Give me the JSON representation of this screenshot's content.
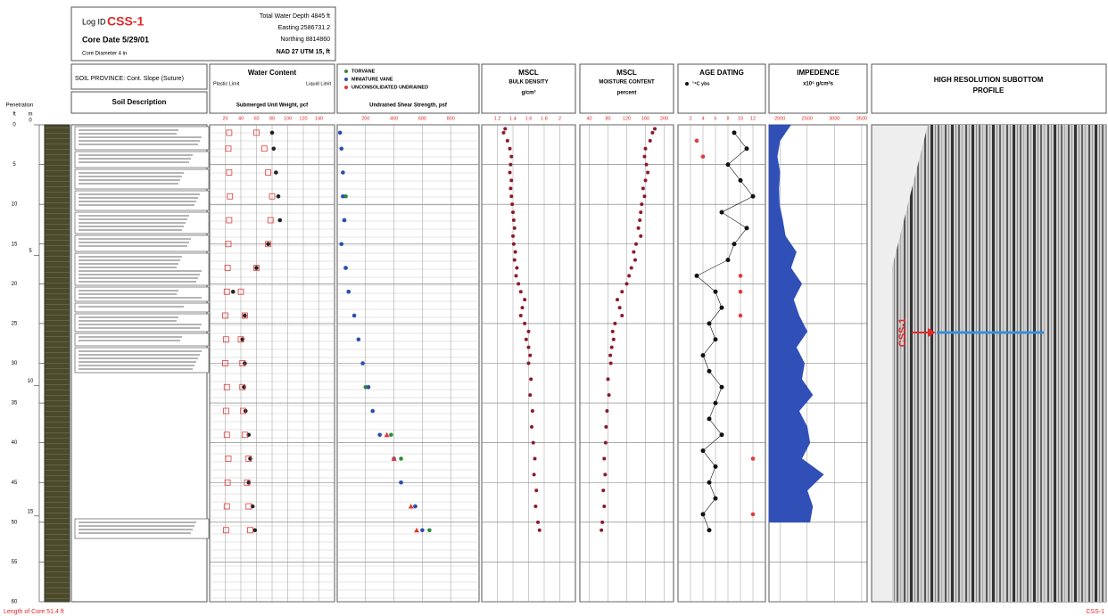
{
  "header": {
    "log_id_label": "Log ID",
    "log_id": "CSS-1",
    "core_date": "Core Date 5/29/01",
    "core_diameter": "Core Diameter 4 in",
    "water_depth": "Total Water Depth 4845 ft",
    "easting": "Easting 2586731.2",
    "northing": "Northing 8814860",
    "datum": "NAD 27 UTM 15, ft"
  },
  "soil": {
    "province": "SOIL PROVINCE: Cont. Slope (Suture)",
    "description": "Soil Description"
  },
  "depth": {
    "title": "Penetration",
    "ft_label": "ft",
    "m_label": "m",
    "ylim": [
      0,
      60
    ],
    "ft_ticks": [
      0,
      5,
      10,
      15,
      20,
      25,
      30,
      35,
      40,
      45,
      50,
      55,
      60
    ],
    "m_lim": [
      0,
      18.288
    ],
    "m_ticks": [
      0,
      5,
      10,
      15
    ]
  },
  "tracks": [
    {
      "title": [
        "Water Content"
      ],
      "left_label": "Plastic Limit",
      "right_label": "Liquid Limit",
      "unit": "Submerged Unit Weight, pcf",
      "xlim": [
        0,
        160
      ],
      "xticks": [
        20,
        40,
        60,
        80,
        100,
        120,
        140
      ],
      "minor_grid": true,
      "series": [
        {
          "name": null,
          "shape": "square",
          "color": "#e03a3a",
          "depth": [
            1,
            3,
            6,
            9,
            12,
            15,
            18,
            21,
            24,
            27,
            30,
            33,
            36,
            39,
            42,
            45,
            48,
            51
          ],
          "values": [
            25,
            24,
            25,
            26,
            25,
            24,
            23,
            22,
            20,
            21,
            20,
            22,
            21,
            22,
            24,
            23,
            22,
            21
          ]
        },
        {
          "name": null,
          "shape": "circle",
          "color": "#222222",
          "depth": [
            1,
            3,
            6,
            9,
            12,
            15,
            18,
            21,
            24,
            27,
            30,
            33,
            36,
            39,
            42,
            45,
            48,
            51
          ],
          "values": [
            80,
            82,
            85,
            88,
            90,
            75,
            60,
            30,
            45,
            42,
            45,
            44,
            46,
            50,
            52,
            50,
            55,
            58
          ]
        },
        {
          "name": null,
          "shape": "square",
          "color": "#e03a3a",
          "depth": [
            1,
            3,
            6,
            9,
            12,
            15,
            18,
            21,
            24,
            27,
            30,
            33,
            36,
            39,
            42,
            45,
            48,
            51
          ],
          "values": [
            60,
            70,
            75,
            80,
            78,
            75,
            60,
            40,
            45,
            40,
            42,
            42,
            43,
            45,
            50,
            48,
            50,
            52
          ]
        }
      ]
    },
    {
      "title": [],
      "unit": "Undrained Shear Strength, psf",
      "xlim": [
        0,
        1000
      ],
      "xticks": [
        200,
        400,
        600,
        800
      ],
      "minor_grid": true,
      "series": [
        {
          "name": "TORVANE",
          "shape": "circle",
          "color": "#2e8b3a",
          "depth": [
            9,
            12,
            18,
            21,
            33,
            39,
            42,
            45,
            48,
            51
          ],
          "values": [
            60,
            50,
            60,
            80,
            200,
            380,
            450,
            450,
            550,
            650
          ]
        },
        {
          "name": "MINIATURE VANE",
          "shape": "circle",
          "color": "#2a4fb0",
          "depth": [
            1,
            3,
            6,
            9,
            12,
            15,
            18,
            21,
            24,
            27,
            30,
            33,
            36,
            39,
            42,
            45,
            48,
            51
          ],
          "values": [
            20,
            30,
            40,
            40,
            50,
            30,
            60,
            80,
            120,
            150,
            180,
            220,
            250,
            300,
            400,
            450,
            550,
            600
          ]
        },
        {
          "name": "UNCONSOLIDATED UNDRAINED",
          "shape": "triangle",
          "color": "#e03a3a",
          "depth": [
            39,
            42,
            48,
            51
          ],
          "values": [
            350,
            400,
            520,
            560
          ]
        }
      ]
    },
    {
      "title": [
        "MSCL",
        "BULK DENSITY"
      ],
      "unit": "g/cm³",
      "xlim": [
        1.0,
        2.2
      ],
      "xticks": [
        1.2,
        1.4,
        1.6,
        1.8,
        2.0
      ],
      "minor_grid": false,
      "series": [
        {
          "name": null,
          "shape": "dot",
          "color": "#8b1a2b",
          "depth": [
            0.5,
            1,
            2,
            3,
            4,
            5,
            6,
            7,
            8,
            9,
            10,
            11,
            12,
            13,
            14,
            15,
            16,
            17,
            18,
            19,
            20,
            21,
            22,
            23,
            24,
            25,
            26,
            27,
            28,
            29,
            30,
            32,
            34,
            36,
            38,
            40,
            42,
            44,
            46,
            48,
            50,
            51
          ],
          "values": [
            1.3,
            1.28,
            1.33,
            1.36,
            1.38,
            1.37,
            1.36,
            1.38,
            1.37,
            1.38,
            1.39,
            1.4,
            1.41,
            1.42,
            1.4,
            1.41,
            1.43,
            1.42,
            1.45,
            1.44,
            1.47,
            1.5,
            1.55,
            1.52,
            1.5,
            1.55,
            1.6,
            1.57,
            1.6,
            1.62,
            1.6,
            1.63,
            1.62,
            1.65,
            1.64,
            1.66,
            1.68,
            1.67,
            1.7,
            1.69,
            1.72,
            1.74
          ]
        }
      ]
    },
    {
      "title": [
        "MSCL",
        "MOISTURE CONTENT"
      ],
      "unit": "percent",
      "xlim": [
        20,
        220
      ],
      "xticks": [
        40,
        80,
        120,
        160,
        200
      ],
      "minor_grid": false,
      "series": [
        {
          "name": null,
          "shape": "dot",
          "color": "#8b1a2b",
          "depth": [
            0.5,
            1,
            2,
            3,
            4,
            5,
            6,
            7,
            8,
            9,
            10,
            11,
            12,
            13,
            14,
            15,
            16,
            17,
            18,
            19,
            20,
            21,
            22,
            23,
            24,
            25,
            26,
            27,
            28,
            29,
            30,
            32,
            34,
            36,
            38,
            40,
            42,
            44,
            46,
            48,
            50,
            51
          ],
          "values": [
            180,
            175,
            170,
            160,
            158,
            162,
            165,
            160,
            155,
            158,
            152,
            150,
            148,
            145,
            150,
            140,
            135,
            138,
            130,
            125,
            120,
            110,
            100,
            105,
            110,
            95,
            90,
            92,
            88,
            85,
            86,
            80,
            82,
            78,
            76,
            75,
            72,
            74,
            70,
            72,
            68,
            66
          ]
        }
      ]
    },
    {
      "title": [
        "AGE DATING"
      ],
      "xlim": [
        0,
        14
      ],
      "xticks": [
        2,
        4,
        6,
        8,
        10,
        12
      ],
      "minor_grid": false,
      "series": [
        {
          "name": null,
          "shape": "circle",
          "color": "#e03a3a",
          "depth": [
            2,
            4,
            19,
            21,
            24,
            42,
            49
          ],
          "values": [
            3,
            4,
            10,
            10,
            10,
            12,
            12
          ]
        },
        {
          "name": "¹⁴C ybs",
          "shape": "line-circle",
          "color": "#111111",
          "depth": [
            1,
            3,
            5,
            7,
            9,
            11,
            13,
            15,
            17,
            19,
            21,
            23,
            25,
            27,
            29,
            31,
            33,
            35,
            37,
            39,
            41,
            43,
            45,
            47,
            49,
            51
          ],
          "values": [
            9,
            11,
            8,
            10,
            12,
            7,
            11,
            9,
            8,
            3,
            6,
            7,
            5,
            6,
            4,
            5,
            7,
            6,
            5,
            7,
            4,
            6,
            5,
            6,
            4,
            5
          ]
        }
      ]
    },
    {
      "title": [
        "IMPEDENCE"
      ],
      "unit": "x10⁵ g/cm²s",
      "xlim": [
        1800,
        3600
      ],
      "xticks": [
        2000,
        2500,
        3000,
        3500
      ],
      "minor_grid": false,
      "series": [
        {
          "name": null,
          "shape": "area",
          "color": "#3050b8",
          "depth": [
            0,
            2,
            4,
            6,
            8,
            10,
            12,
            14,
            16,
            18,
            20,
            22,
            24,
            26,
            28,
            30,
            32,
            34,
            36,
            38,
            40,
            42,
            44,
            46,
            48,
            50
          ],
          "values": [
            2200,
            2000,
            1950,
            2000,
            1980,
            1990,
            2050,
            2100,
            2300,
            2200,
            2400,
            2250,
            2350,
            2500,
            2300,
            2450,
            2400,
            2600,
            2350,
            2500,
            2550,
            2400,
            2800,
            2500,
            2600,
            2550
          ]
        }
      ]
    }
  ],
  "profile": {
    "title": [
      "HIGH RESOLUTION SUBOTTOM",
      "PROFILE"
    ],
    "marker": "CSS-1"
  },
  "footer": {
    "length": "Length of Core  51.4 ft",
    "log_id": "CSS-1"
  }
}
